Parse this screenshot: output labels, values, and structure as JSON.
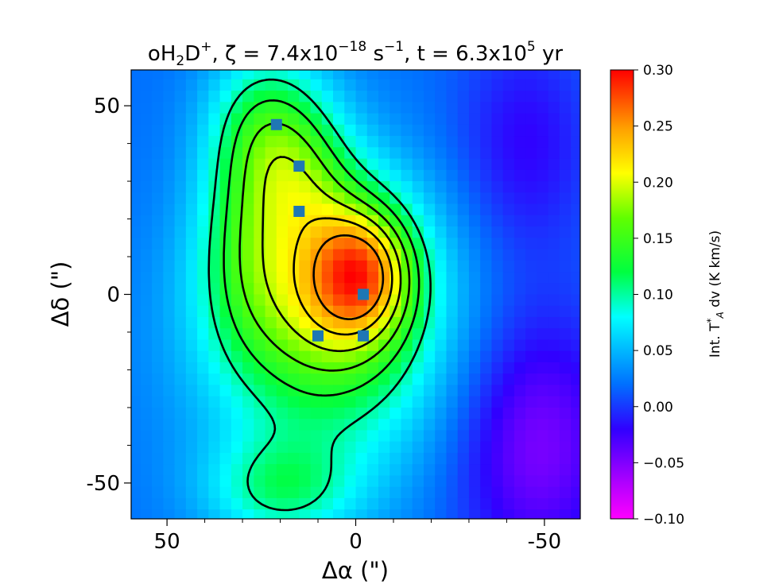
{
  "chart_data": {
    "type": "heatmap",
    "title_parts": {
      "base": "oH",
      "sub1": "2",
      "mid": "D",
      "sup1": "+",
      "zeta_part": ", ζ = 7.4x10",
      "zeta_exp": "−18",
      "zeta_unit": " s",
      "zeta_unit_exp": "−1",
      "time_part": ", t = 6.3x10",
      "time_exp": "5",
      "time_unit": " yr"
    },
    "xlabel": "Δα (\")",
    "ylabel": "Δδ (\")",
    "colorbar_label": "Int. T*A dv  (K km/s)",
    "colorbar_label_parts": {
      "pre": "Int. T",
      "sup": "*",
      "sub": "A",
      "post": " dv  (K km/s)"
    },
    "xlim": [
      59.5,
      -59.5
    ],
    "ylim": [
      -59.5,
      59.5
    ],
    "x_ticks": [
      50,
      0,
      -50
    ],
    "x_tick_labels": [
      "50",
      "0",
      "-50"
    ],
    "y_ticks": [
      50,
      0,
      -50
    ],
    "y_tick_labels": [
      "50",
      "0",
      "-50"
    ],
    "color_range": [
      -0.1,
      0.3
    ],
    "colorbar_ticks": [
      0.3,
      0.25,
      0.2,
      0.15,
      0.1,
      0.05,
      0.0,
      -0.05,
      -0.1
    ],
    "colorbar_tick_labels": [
      "0.30",
      "0.25",
      "0.20",
      "0.15",
      "0.10",
      "0.05",
      "0.00",
      "−0.05",
      "−0.10"
    ],
    "colormap": "gist_rainbow_r",
    "grid": false,
    "observed_points": {
      "marker": "square",
      "color": "#1f77b4",
      "x": [
        21,
        15,
        15,
        10,
        -2,
        -2
      ],
      "y": [
        45,
        34,
        22,
        -11,
        0,
        -11
      ]
    },
    "contour_levels": [
      0.1,
      0.13,
      0.16,
      0.19,
      0.22,
      0.25
    ]
  }
}
